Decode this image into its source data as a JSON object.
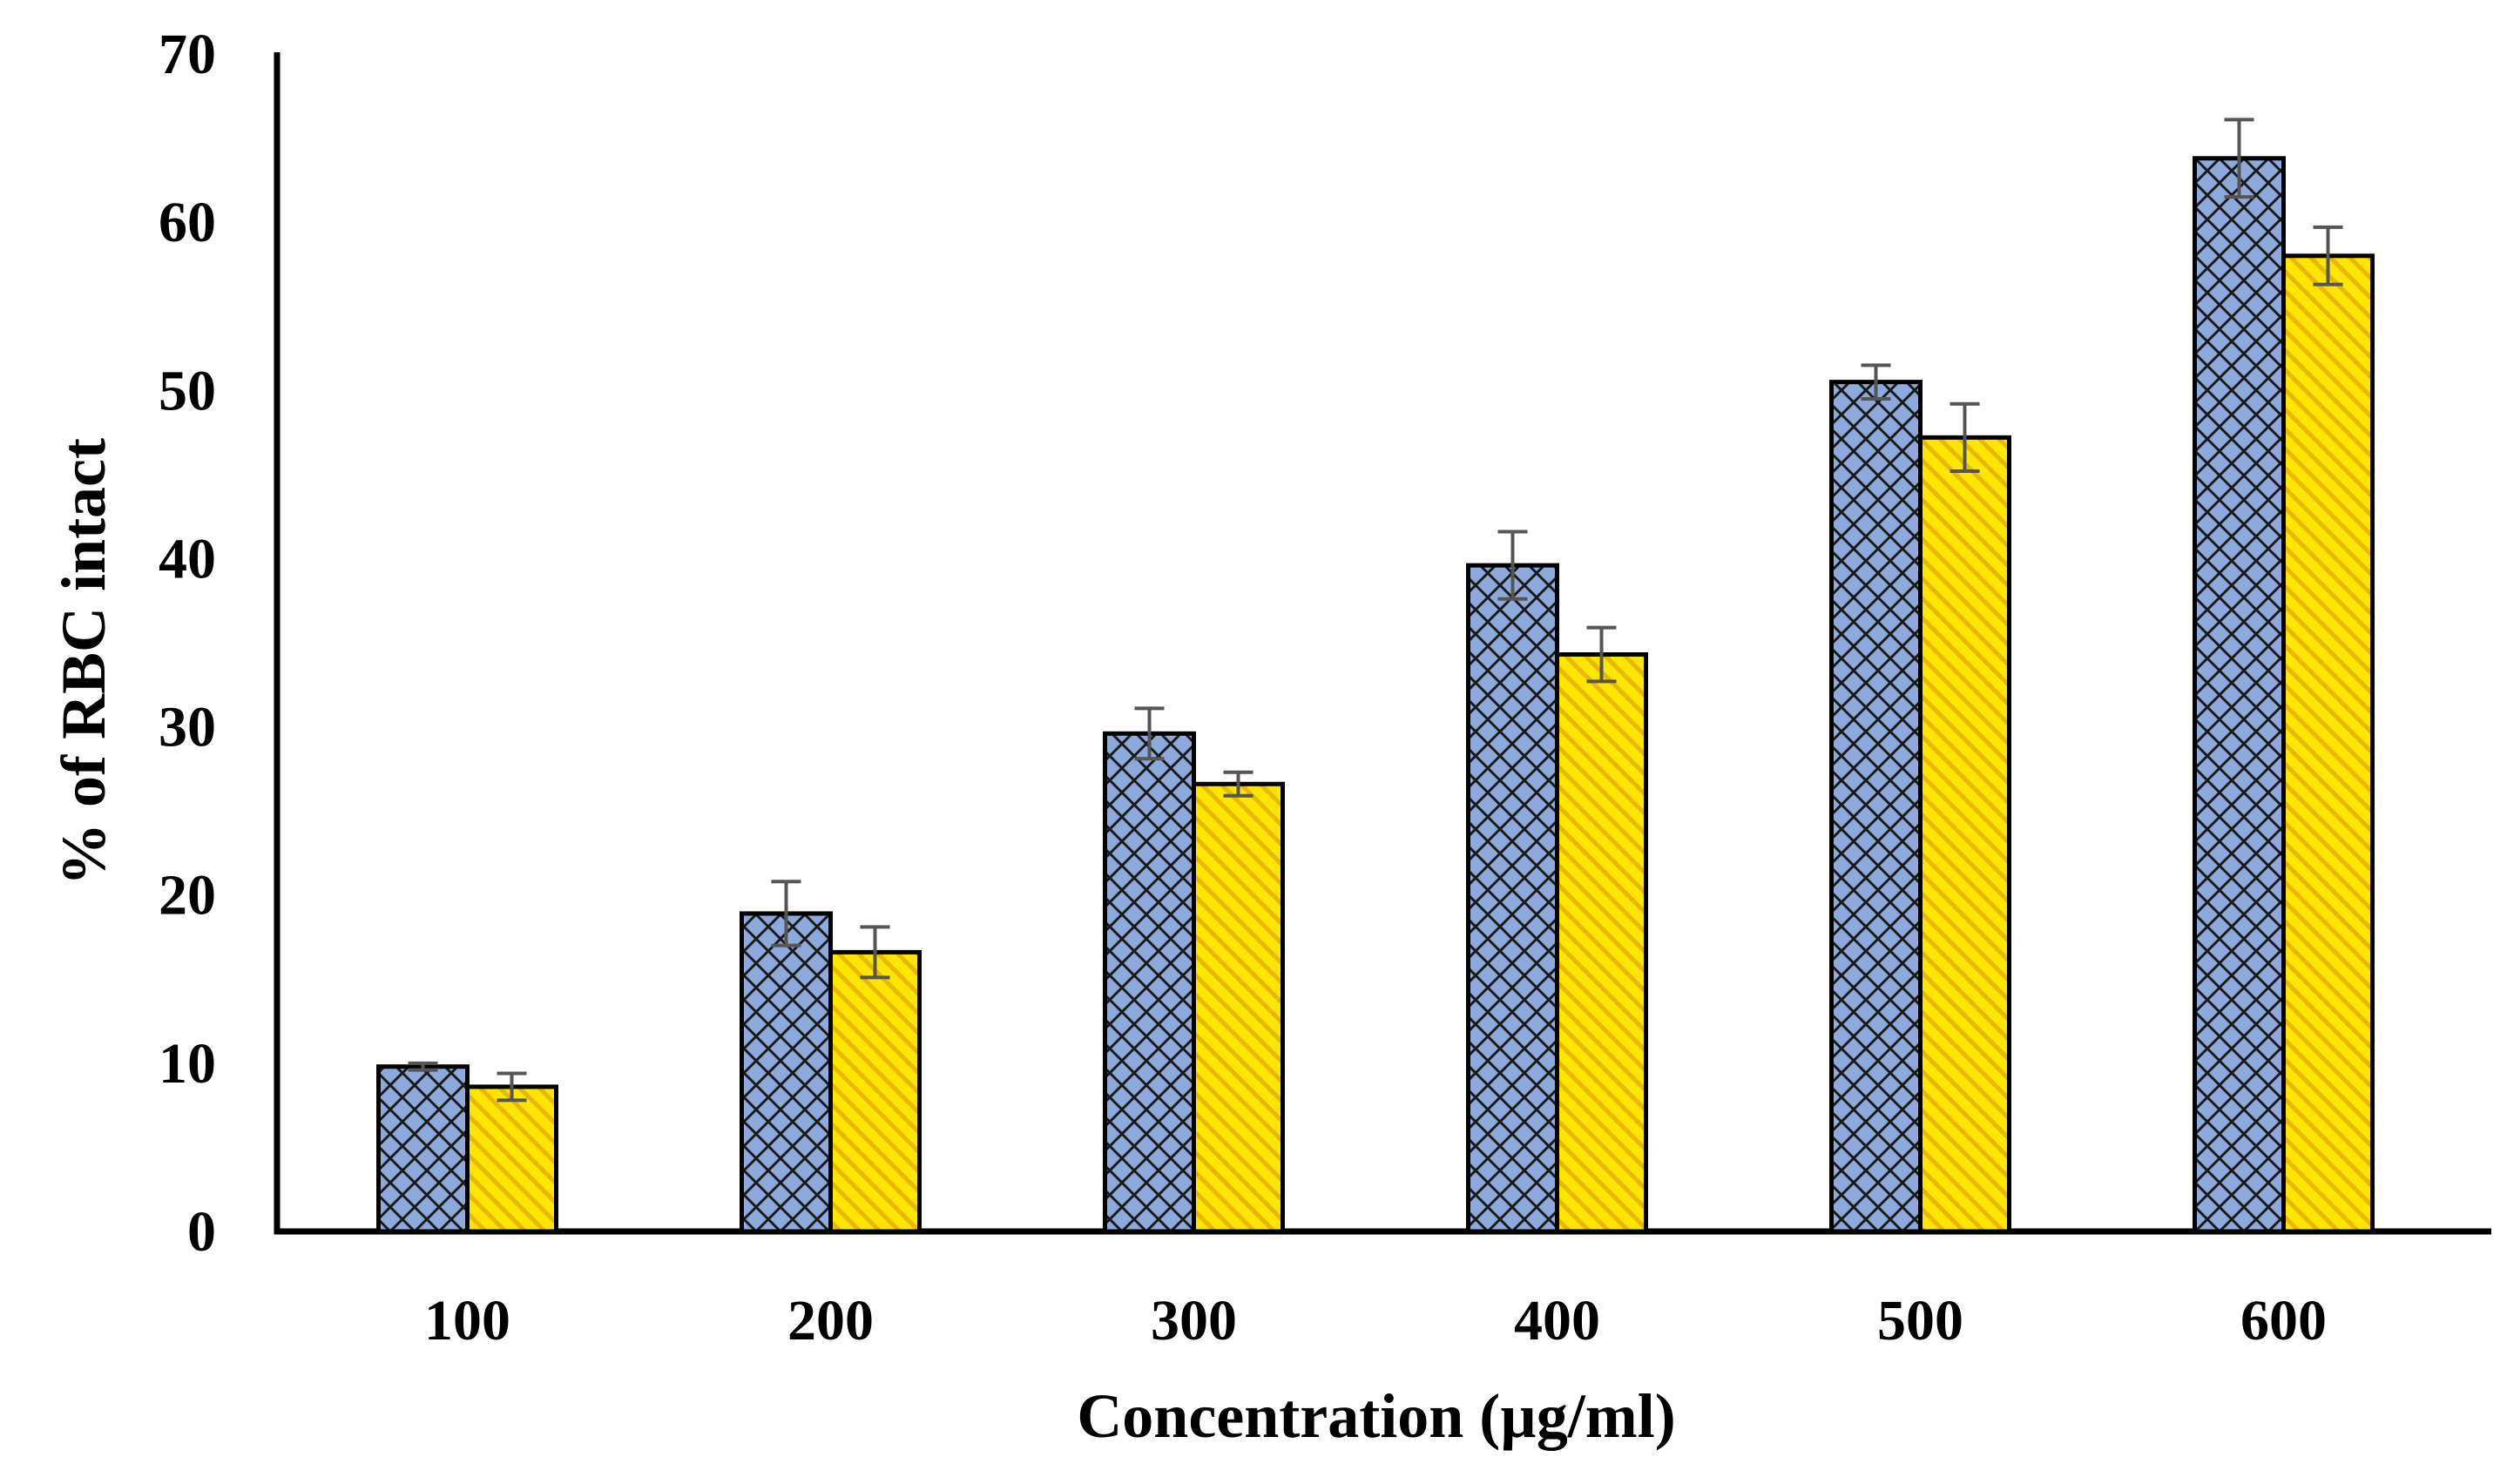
{
  "chart_data": {
    "type": "bar",
    "title": "",
    "xlabel": "Concentration (µg/ml)",
    "ylabel": "% of RBC intact",
    "categories": [
      "100",
      "200",
      "300",
      "400",
      "500",
      "600"
    ],
    "ylim": [
      0,
      70
    ],
    "yticks": [
      "0",
      "10",
      "20",
      "30",
      "40",
      "50",
      "60",
      "70"
    ],
    "grid": false,
    "legend": "none",
    "series": [
      {
        "color": "#8EA9DB",
        "pattern": "crosshatch-diamond",
        "values": [
          9.8,
          18.9,
          29.6,
          39.6,
          50.5,
          63.8
        ],
        "errors": [
          0.2,
          1.9,
          1.5,
          2.0,
          1.0,
          2.3
        ]
      },
      {
        "color": "#FFE600",
        "pattern": "diagonal-stripes",
        "values": [
          8.6,
          16.6,
          26.6,
          34.3,
          47.2,
          58.0
        ],
        "errors": [
          0.8,
          1.5,
          0.7,
          1.6,
          2.0,
          1.7
        ]
      }
    ]
  }
}
